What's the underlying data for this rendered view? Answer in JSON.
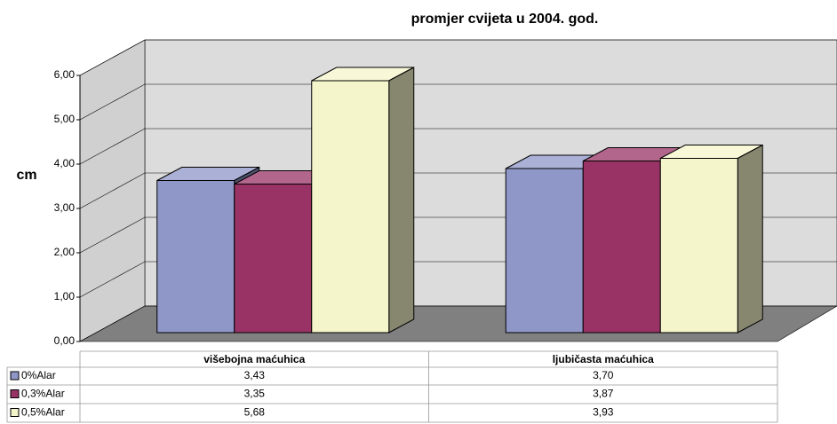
{
  "chart_data": {
    "type": "bar3d",
    "title": "promjer cvijeta u 2004. god.",
    "y_label": "cm",
    "categories": [
      "višebojna maćuhica",
      "ljubičasta maćuhica"
    ],
    "series": [
      {
        "name": "0%Alar",
        "color": "#8f97c8",
        "values": [
          3.43,
          3.7
        ],
        "value_labels": [
          "3,43",
          "3,70"
        ]
      },
      {
        "name": "0,3%Alar",
        "color": "#993366",
        "values": [
          3.35,
          3.87
        ],
        "value_labels": [
          "3,35",
          "3,87"
        ]
      },
      {
        "name": "0,5%Alar",
        "color": "#f5f5cb",
        "values": [
          5.68,
          3.93
        ],
        "value_labels": [
          "5,68",
          "3,93"
        ]
      }
    ],
    "ylim": [
      0,
      6
    ],
    "yticks": [
      {
        "value": 0,
        "label": "0,00"
      },
      {
        "value": 1,
        "label": "1,00"
      },
      {
        "value": 2,
        "label": "2,00"
      },
      {
        "value": 3,
        "label": "3,00"
      },
      {
        "value": 4,
        "label": "4,00"
      },
      {
        "value": 5,
        "label": "5,00"
      },
      {
        "value": 6,
        "label": "6,00"
      }
    ],
    "grid": true
  }
}
